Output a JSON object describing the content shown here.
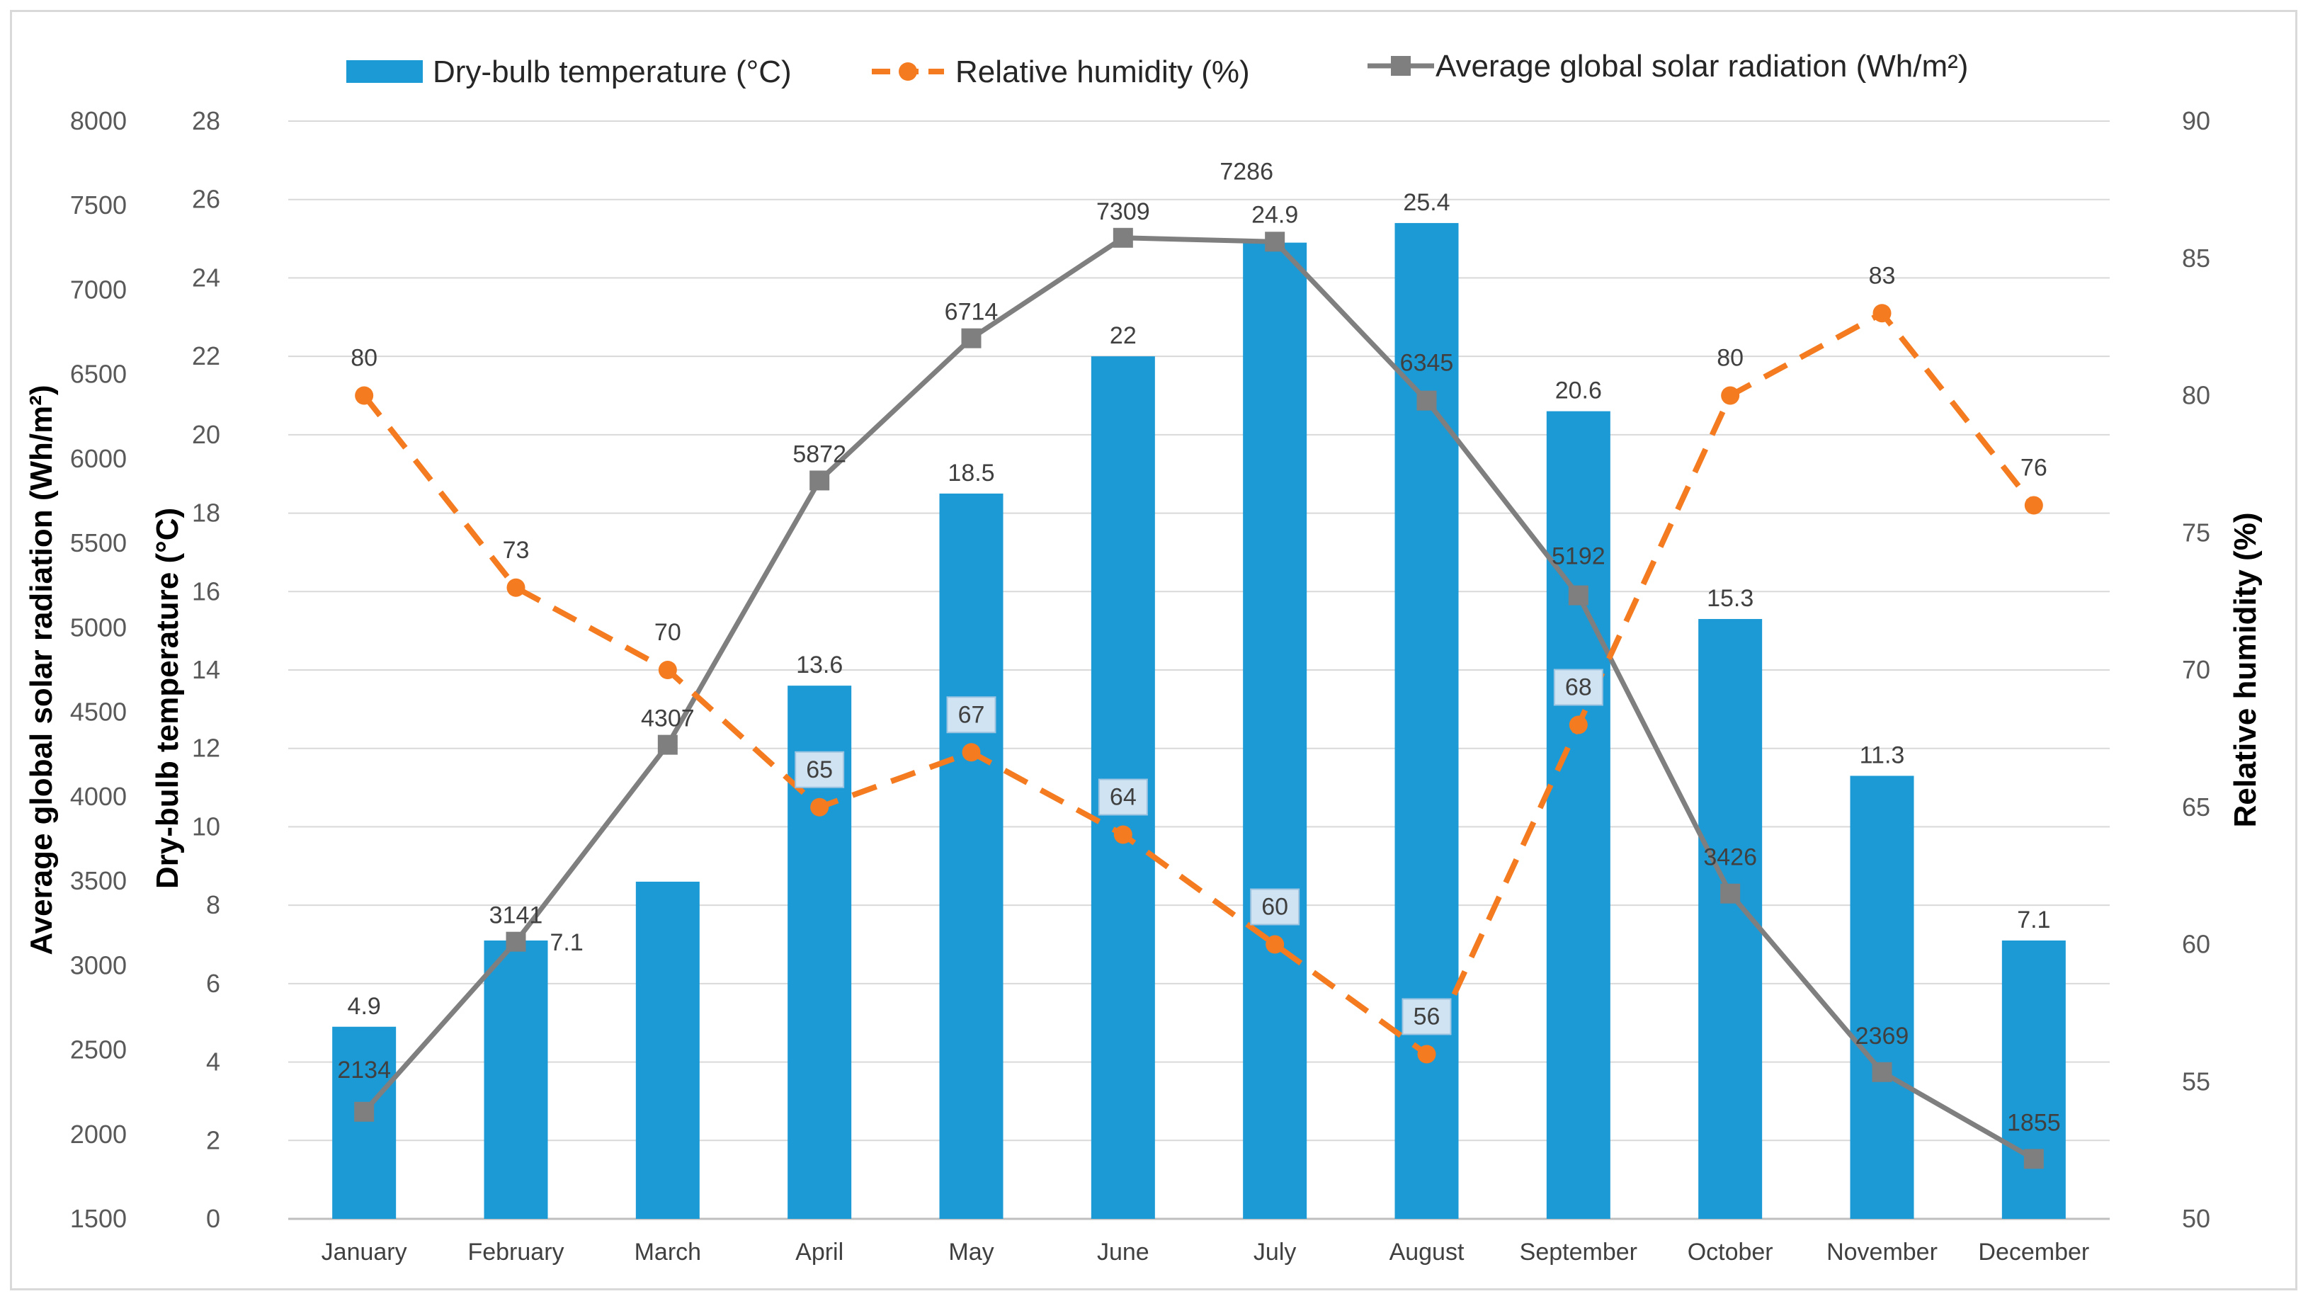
{
  "chart_data": {
    "type": "bar",
    "categories": [
      "January",
      "February",
      "March",
      "April",
      "May",
      "June",
      "July",
      "August",
      "September",
      "October",
      "November",
      "December"
    ],
    "series": [
      {
        "name": "Dry-bulb temperature (°C)",
        "kind": "bar",
        "axis": "temperature",
        "color": "#1b9ad6",
        "values": [
          4.9,
          7.1,
          8.6,
          13.6,
          18.5,
          22,
          24.9,
          25.4,
          20.6,
          15.3,
          11.3,
          7.1
        ],
        "labels": [
          "4.9",
          "7.1",
          "",
          "13.6",
          "18.5",
          "22",
          "24.9",
          "25.4",
          "20.6",
          "15.3",
          "11.3",
          "7.1"
        ]
      },
      {
        "name": "Relative humidity (%)",
        "kind": "dashed-line",
        "axis": "humidity",
        "color": "#f47b20",
        "values": [
          80,
          73,
          70,
          65,
          67,
          64,
          60,
          56,
          68,
          80,
          83,
          76
        ],
        "labels": [
          "80",
          "73",
          "70",
          "65",
          "67",
          "64",
          "60",
          "56",
          "68",
          "80",
          "83",
          "76"
        ]
      },
      {
        "name": "Average global solar radiation (Wh/m²)",
        "kind": "line",
        "axis": "radiation",
        "color": "#7f7f7f",
        "values": [
          2134,
          3141,
          4307,
          5872,
          6714,
          7309,
          7286,
          6345,
          5192,
          3426,
          2369,
          1855
        ],
        "labels": [
          "2134",
          "3141",
          "4307",
          "5872",
          "6714",
          "7309",
          "7286",
          "6345",
          "5192",
          "3426",
          "2369",
          "1855"
        ]
      }
    ],
    "axes": {
      "radiation": {
        "title": "Average global solar radiation (Wh/m²)",
        "min": 1500,
        "max": 8000,
        "step": 500,
        "ticks": [
          "1500",
          "2000",
          "2500",
          "3000",
          "3500",
          "4000",
          "4500",
          "5000",
          "5500",
          "6000",
          "6500",
          "7000",
          "7500",
          "8000"
        ]
      },
      "temperature": {
        "title": "Dry-bulb temperature (°C)",
        "min": 0,
        "max": 28,
        "step": 2,
        "ticks": [
          "0",
          "2",
          "4",
          "6",
          "8",
          "10",
          "12",
          "14",
          "16",
          "18",
          "20",
          "22",
          "24",
          "26",
          "28"
        ]
      },
      "humidity": {
        "title": "Relative humidity (%)",
        "min": 50,
        "max": 90,
        "step": 5,
        "ticks": [
          "50",
          "55",
          "60",
          "65",
          "70",
          "75",
          "80",
          "85",
          "90"
        ]
      }
    },
    "legend": {
      "position": "top",
      "items": [
        "Dry-bulb temperature (°C)",
        "Relative humidity (%)",
        "Average global solar radiation (Wh/m²)"
      ]
    },
    "grid": true
  }
}
